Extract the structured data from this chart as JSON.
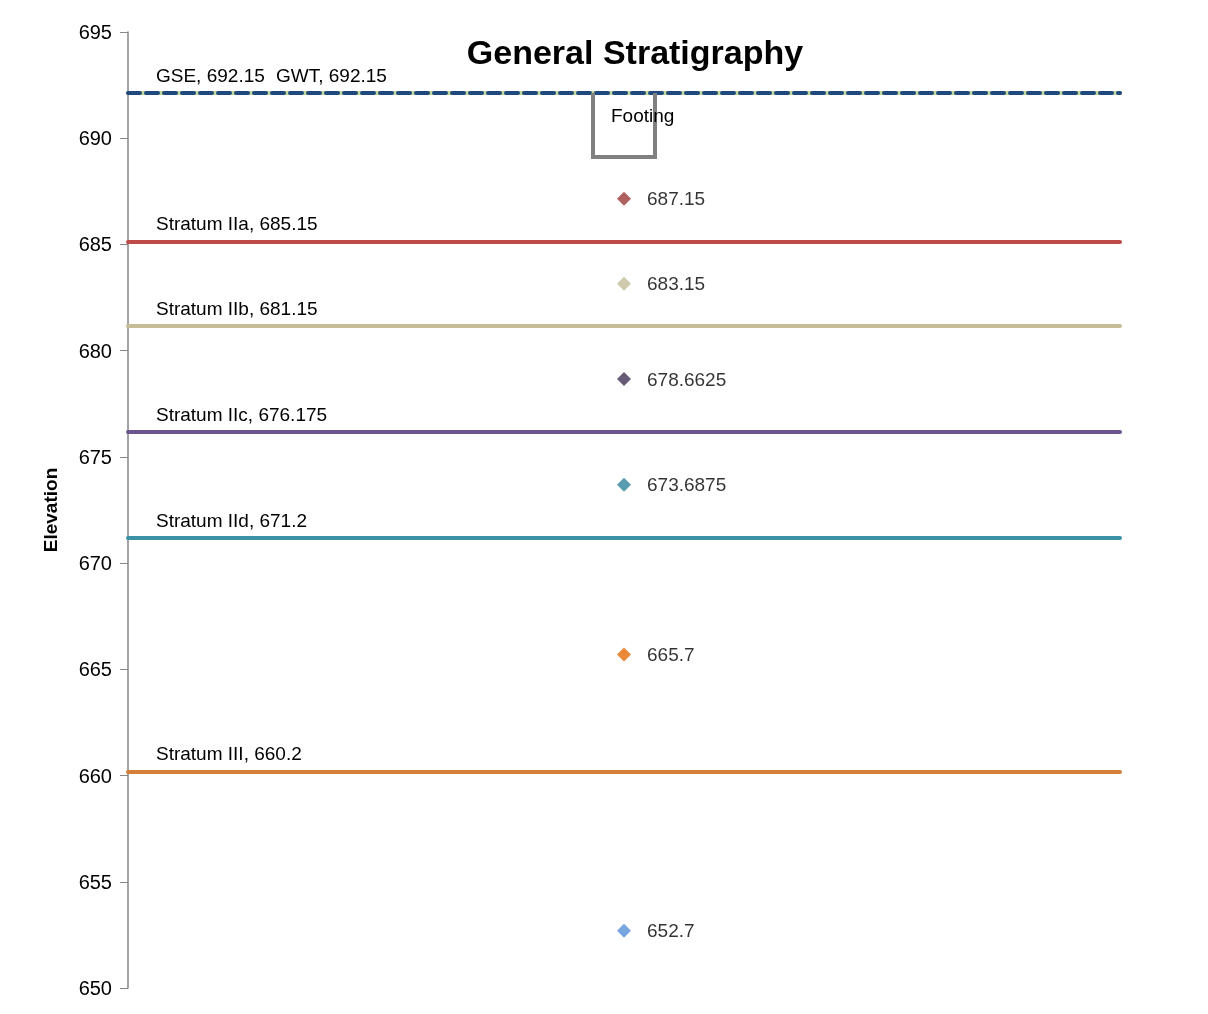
{
  "chart_data": {
    "type": "scatter",
    "title": "General Stratigraphy",
    "ylabel": "Elevation",
    "categories": [
      null
    ],
    "ylim": [
      650,
      695
    ],
    "yticks": [
      650,
      655,
      660,
      665,
      670,
      675,
      680,
      685,
      690,
      695
    ],
    "tick_labels": "y",
    "grid": false,
    "marker": "diamond",
    "data_labels": true,
    "annotations": [
      "Footing"
    ],
    "ref_lines": [
      {
        "axis": "y",
        "value": 692.15,
        "label": "GSE, 692.15",
        "color": "#c3d69b",
        "line_style": "solid"
      },
      {
        "axis": "y",
        "value": 692.15,
        "label": "GWT, 692.15",
        "color": "#1f497d",
        "line_style": "dashed"
      },
      {
        "axis": "y",
        "value": 685.15,
        "label": "Stratum IIa, 685.15",
        "color": "#be4b48",
        "line_style": "solid"
      },
      {
        "axis": "y",
        "value": 681.15,
        "label": "Stratum IIb, 681.15",
        "color": "#c4bd97",
        "line_style": "solid"
      },
      {
        "axis": "y",
        "value": 676.175,
        "label": "Stratum IIc, 676.175",
        "color": "#6f5590",
        "line_style": "solid"
      },
      {
        "axis": "y",
        "value": 671.2,
        "label": "Stratum IId, 671.2",
        "color": "#3b91a6",
        "line_style": "solid"
      },
      {
        "axis": "y",
        "value": 660.2,
        "label": "Stratum III, 660.2",
        "color": "#d47f37",
        "line_style": "solid"
      }
    ],
    "series": [
      {
        "values": [
          687.15
        ],
        "color": "#9b3a38"
      },
      {
        "values": [
          683.15
        ],
        "color": "#c4bd97"
      },
      {
        "values": [
          678.6625
        ],
        "color": "#403152"
      },
      {
        "values": [
          673.6875
        ],
        "color": "#31859c"
      },
      {
        "values": [
          665.7
        ],
        "color": "#e36c09"
      },
      {
        "values": [
          652.7
        ],
        "color": "#558ed5"
      }
    ]
  }
}
